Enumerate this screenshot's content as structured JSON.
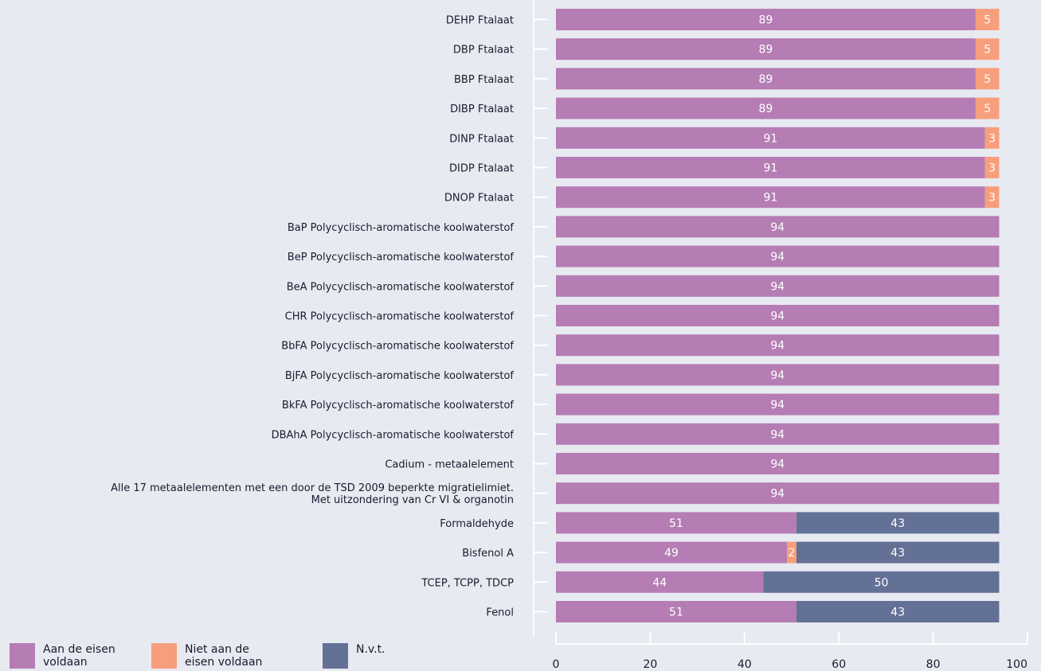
{
  "chart_data": {
    "type": "bar",
    "orientation": "horizontal",
    "stacked": true,
    "categories": [
      "DEHP Ftalaat",
      "DBP Ftalaat",
      "BBP Ftalaat",
      "DIBP Ftalaat",
      "DINP Ftalaat",
      "DIDP Ftalaat",
      "DNOP Ftalaat",
      "BaP Polycyclisch-aromatische koolwaterstof",
      "BeP Polycyclisch-aromatische koolwaterstof",
      "BeA Polycyclisch-aromatische koolwaterstof",
      "CHR Polycyclisch-aromatische koolwaterstof",
      "BbFA Polycyclisch-aromatische koolwaterstof",
      "BjFA Polycyclisch-aromatische koolwaterstof",
      "BkFA Polycyclisch-aromatische koolwaterstof",
      "DBAhA Polycyclisch-aromatische koolwaterstof",
      "Cadium - metaalelement",
      "Alle 17 metaalelementen met een door de TSD 2009 beperkte migratielimiet.\nMet uitzondering van Cr VI & organotin",
      "Formaldehyde",
      "Bisfenol A",
      "TCEP, TCPP, TDCP",
      "Fenol"
    ],
    "series": [
      {
        "name": "Aan de eisen voldaan",
        "color": "#b57db3",
        "values": [
          89,
          89,
          89,
          89,
          91,
          91,
          91,
          94,
          94,
          94,
          94,
          94,
          94,
          94,
          94,
          94,
          94,
          51,
          49,
          44,
          51
        ]
      },
      {
        "name": "Niet aan de eisen voldaan",
        "color": "#f79f7c",
        "values": [
          5,
          5,
          5,
          5,
          3,
          3,
          3,
          0,
          0,
          0,
          0,
          0,
          0,
          0,
          0,
          0,
          0,
          0,
          2,
          0,
          0
        ]
      },
      {
        "name": "N.v.t.",
        "color": "#647196",
        "values": [
          0,
          0,
          0,
          0,
          0,
          0,
          0,
          0,
          0,
          0,
          0,
          0,
          0,
          0,
          0,
          0,
          0,
          43,
          43,
          50,
          43
        ]
      }
    ],
    "xlim": [
      0,
      100
    ],
    "xticks": [
      0,
      20,
      40,
      60,
      80,
      100
    ],
    "title": "",
    "xlabel": "",
    "ylabel": "",
    "grid": false,
    "legend_position": "bottom-left"
  },
  "legend": {
    "items": [
      {
        "label": "Aan de eisen voldaan",
        "color": "#b57db3"
      },
      {
        "label": "Niet aan de eisen voldaan",
        "color": "#f79f7c"
      },
      {
        "label": "N.v.t.",
        "color": "#647196"
      }
    ]
  }
}
